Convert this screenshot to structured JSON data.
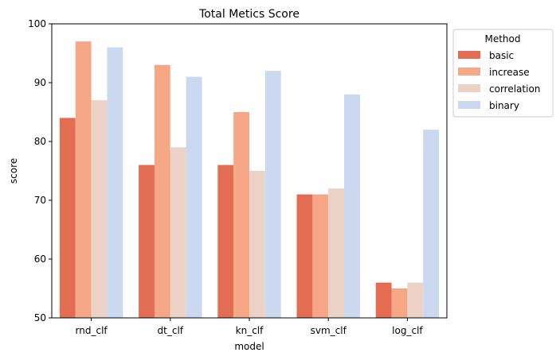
{
  "chart_data": {
    "type": "bar",
    "title": "Total Metics Score",
    "xlabel": "model",
    "ylabel": "score",
    "categories": [
      "rnd_clf",
      "dt_clf",
      "kn_clf",
      "svm_clf",
      "log_clf"
    ],
    "ylim": [
      50,
      100
    ],
    "yticks": [
      "50",
      "60",
      "70",
      "80",
      "90",
      "100"
    ],
    "grid": false,
    "legend": {
      "title": "Method",
      "placement": "outside-top-right"
    },
    "series": [
      {
        "name": "basic",
        "color": "#e26d53",
        "values": [
          84,
          76,
          76,
          71,
          56
        ]
      },
      {
        "name": "increase",
        "color": "#f6a886",
        "values": [
          97,
          93,
          85,
          71,
          55
        ]
      },
      {
        "name": "correlation",
        "color": "#ecd2c6",
        "values": [
          87,
          79,
          75,
          72,
          56
        ]
      },
      {
        "name": "binary",
        "color": "#cad8f0",
        "values": [
          96,
          91,
          92,
          88,
          82
        ]
      }
    ]
  }
}
